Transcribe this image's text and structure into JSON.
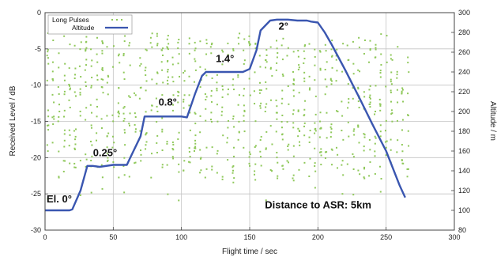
{
  "chart_data": {
    "type": "line",
    "xlabel": "Flight time / sec",
    "ylabel_left": "Received Level / dB",
    "ylabel_right": "Altitude / m",
    "xlim": [
      0,
      300
    ],
    "ylim_left": [
      -30,
      0
    ],
    "ylim_right": [
      80,
      300
    ],
    "x_ticks": [
      "0",
      "50",
      "100",
      "150",
      "200",
      "250",
      "300"
    ],
    "y_ticks_left": [
      "0",
      "-5",
      "-10",
      "-15",
      "-20",
      "-25",
      "-30"
    ],
    "y_ticks_right": [
      "80",
      "100",
      "120",
      "140",
      "160",
      "180",
      "200",
      "220",
      "240",
      "260",
      "280",
      "300"
    ],
    "grid": true,
    "legend_position": "top-left",
    "series": [
      {
        "name": "Long Pulses",
        "type": "scatter",
        "axis": "left",
        "color": "#8fc85a",
        "x_start": 2,
        "x_end": 266,
        "x_step": 4,
        "y_range_typical": [
          -23,
          -3
        ],
        "y_range_min": -26
      },
      {
        "name": "Altitude",
        "type": "line",
        "axis": "right",
        "color": "#3a56b0",
        "x": [
          0,
          18,
          20,
          26,
          31,
          35,
          40,
          50,
          55,
          60,
          62,
          70,
          73,
          80,
          90,
          100,
          104,
          110,
          115,
          118,
          125,
          145,
          150,
          155,
          158,
          165,
          170,
          178,
          185,
          192,
          195,
          200,
          205,
          210,
          220,
          230,
          240,
          250,
          260,
          264
        ],
        "y": [
          100,
          100,
          101,
          120,
          145,
          145,
          144,
          146,
          146,
          146,
          152,
          175,
          195,
          195,
          195,
          195,
          194,
          218,
          236,
          240,
          240,
          240,
          243,
          262,
          282,
          292,
          293,
          293,
          292,
          292,
          291,
          290,
          280,
          268,
          242,
          215,
          187,
          160,
          125,
          113
        ]
      }
    ],
    "annotations": [
      {
        "text": "El. 0°",
        "x": 0,
        "y": 108
      },
      {
        "text": "0.25°",
        "x": 34,
        "y": 155
      },
      {
        "text": "0.8°",
        "x": 82,
        "y": 206
      },
      {
        "text": "1.4°",
        "x": 124,
        "y": 250
      },
      {
        "text": "2°",
        "x": 170,
        "y": 283
      },
      {
        "text": "Distance to ASR: 5km",
        "x": 160,
        "y": 102
      }
    ]
  }
}
